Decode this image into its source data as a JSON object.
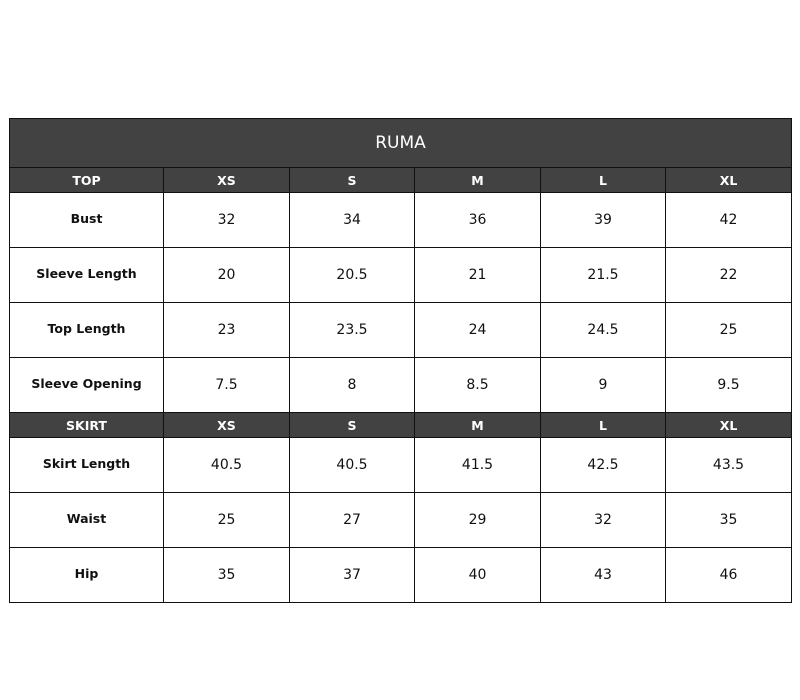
{
  "title": "RUMA",
  "sizes": [
    "XS",
    "S",
    "M",
    "L",
    "XL"
  ],
  "top": {
    "header": "TOP",
    "rows": [
      {
        "label": "Bust",
        "values": [
          "32",
          "34",
          "36",
          "39",
          "42"
        ]
      },
      {
        "label": "Sleeve Length",
        "values": [
          "20",
          "20.5",
          "21",
          "21.5",
          "22"
        ]
      },
      {
        "label": "Top Length",
        "values": [
          "23",
          "23.5",
          "24",
          "24.5",
          "25"
        ]
      },
      {
        "label": "Sleeve Opening",
        "values": [
          "7.5",
          "8",
          "8.5",
          "9",
          "9.5"
        ]
      }
    ]
  },
  "skirt": {
    "header": "SKIRT",
    "rows": [
      {
        "label": "Skirt Length",
        "values": [
          "40.5",
          "40.5",
          "41.5",
          "42.5",
          "43.5"
        ]
      },
      {
        "label": "Waist",
        "values": [
          "25",
          "27",
          "29",
          "32",
          "35"
        ]
      },
      {
        "label": "Hip",
        "values": [
          "35",
          "37",
          "40",
          "43",
          "46"
        ]
      }
    ]
  },
  "colors": {
    "header_bg": "#424242",
    "header_text": "#ffffff",
    "border": "#111111"
  }
}
